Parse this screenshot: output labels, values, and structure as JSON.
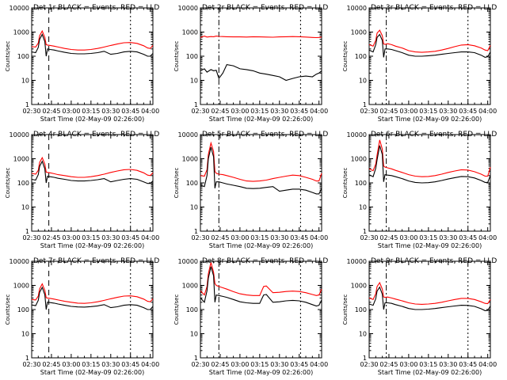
{
  "chart_data": [
    {
      "type": "line",
      "title": "Det 1r BLACK = Events, RED = LLD",
      "xlabel": "Start Time (02-May-09 02:26:00)",
      "ylabel": "Counts/sec",
      "yscale": "log",
      "ylim": [
        1,
        10000
      ],
      "x_ticks": [
        "02:30",
        "02:45",
        "03:00",
        "03:15",
        "03:30",
        "03:45",
        "04:00"
      ],
      "y_ticks": [
        "1",
        "10",
        "100",
        "1000",
        "10000"
      ],
      "x": [
        0,
        3,
        5,
        6,
        8,
        10,
        11,
        12,
        14,
        17,
        20,
        25,
        30,
        35,
        40,
        45,
        50,
        55,
        60,
        65,
        70,
        75,
        80,
        85,
        88,
        90,
        92
      ],
      "series": [
        {
          "color": "#ff0000",
          "values": [
            250,
            240,
            350,
            700,
            1100,
            600,
            300,
            290,
            280,
            260,
            240,
            210,
            190,
            180,
            180,
            190,
            210,
            240,
            280,
            320,
            360,
            370,
            340,
            270,
            220,
            210,
            280
          ]
        },
        {
          "color": "#000000",
          "values": [
            150,
            140,
            230,
            500,
            800,
            400,
            100,
            200,
            190,
            180,
            165,
            145,
            130,
            125,
            125,
            130,
            140,
            160,
            120,
            130,
            150,
            160,
            150,
            120,
            100,
            100,
            130
          ]
        }
      ],
      "vlines": [
        {
          "x": 13,
          "style": "dashed"
        },
        {
          "x": 75,
          "style": "dotted"
        }
      ]
    },
    {
      "type": "line",
      "title": "Det 2r BLACK = Events, RED = LLD",
      "xlabel": "Start Time (02-May-09 02:26:00)",
      "ylabel": "Counts/sec",
      "yscale": "log",
      "ylim": [
        1,
        10000
      ],
      "x_ticks": [
        "02:30",
        "02:45",
        "03:00",
        "03:15",
        "03:30",
        "03:45",
        "04:00"
      ],
      "y_ticks": [
        "1",
        "10",
        "100",
        "1000",
        "10000"
      ],
      "x": [
        0,
        3,
        5,
        8,
        10,
        12,
        14,
        17,
        20,
        25,
        30,
        35,
        40,
        45,
        50,
        55,
        60,
        65,
        70,
        75,
        80,
        85,
        88,
        90,
        92
      ],
      "series": [
        {
          "color": "#ff0000",
          "values": [
            600,
            680,
            620,
            650,
            640,
            680,
            660,
            650,
            640,
            630,
            630,
            620,
            640,
            630,
            620,
            610,
            630,
            640,
            650,
            640,
            620,
            600,
            590,
            600,
            620
          ]
        },
        {
          "color": "#000000",
          "values": [
            25,
            30,
            22,
            28,
            25,
            26,
            12,
            20,
            45,
            40,
            30,
            28,
            25,
            20,
            18,
            16,
            14,
            10,
            12,
            14,
            15,
            14,
            18,
            20,
            25
          ]
        }
      ],
      "vlines": [
        {
          "x": 14,
          "style": "dashdot"
        },
        {
          "x": 76,
          "style": "dotted"
        }
      ]
    },
    {
      "type": "line",
      "title": "Det 3r BLACK = Events, RED = LLD",
      "xlabel": "Start Time (02-May-09 02:26:00)",
      "ylabel": "Counts/sec",
      "yscale": "log",
      "ylim": [
        1,
        10000
      ],
      "x_ticks": [
        "02:30",
        "02:45",
        "03:00",
        "03:15",
        "03:30",
        "03:45",
        "04:00"
      ],
      "y_ticks": [
        "1",
        "10",
        "100",
        "1000",
        "10000"
      ],
      "x": [
        0,
        3,
        5,
        6,
        8,
        10,
        11,
        12,
        14,
        17,
        20,
        25,
        30,
        35,
        40,
        45,
        50,
        55,
        60,
        65,
        70,
        75,
        80,
        85,
        88,
        90,
        92
      ],
      "series": [
        {
          "color": "#ff0000",
          "values": [
            300,
            260,
            450,
            900,
            1200,
            700,
            320,
            310,
            330,
            300,
            260,
            220,
            170,
            150,
            145,
            150,
            160,
            180,
            210,
            250,
            290,
            300,
            270,
            220,
            180,
            170,
            280
          ]
        },
        {
          "color": "#000000",
          "values": [
            180,
            150,
            300,
            600,
            800,
            450,
            90,
            200,
            200,
            190,
            170,
            140,
            110,
            100,
            100,
            105,
            110,
            120,
            130,
            140,
            150,
            150,
            140,
            110,
            90,
            95,
            150
          ]
        }
      ],
      "vlines": [
        {
          "x": 13,
          "style": "dashdot"
        },
        {
          "x": 75,
          "style": "dotted"
        }
      ]
    },
    {
      "type": "line",
      "title": "Det 4r BLACK = Events, RED = LLD",
      "xlabel": "Start Time (02-May-09 02:26:00)",
      "ylabel": "Counts/sec",
      "yscale": "log",
      "ylim": [
        1,
        10000
      ],
      "x_ticks": [
        "02:30",
        "02:45",
        "03:00",
        "03:15",
        "03:30",
        "03:45",
        "04:00"
      ],
      "y_ticks": [
        "1",
        "10",
        "100",
        "1000",
        "10000"
      ],
      "x": [
        0,
        3,
        5,
        6,
        8,
        10,
        11,
        12,
        14,
        17,
        20,
        25,
        30,
        35,
        40,
        45,
        50,
        55,
        60,
        65,
        70,
        75,
        80,
        85,
        88,
        90,
        92
      ],
      "series": [
        {
          "color": "#ff0000",
          "values": [
            250,
            230,
            330,
            700,
            1100,
            600,
            280,
            270,
            260,
            240,
            220,
            200,
            180,
            170,
            170,
            180,
            200,
            230,
            270,
            310,
            350,
            360,
            330,
            260,
            210,
            200,
            260
          ]
        },
        {
          "color": "#000000",
          "values": [
            140,
            130,
            220,
            480,
            780,
            380,
            100,
            190,
            180,
            170,
            155,
            140,
            125,
            120,
            120,
            125,
            135,
            150,
            110,
            125,
            140,
            150,
            140,
            110,
            95,
            95,
            120
          ]
        }
      ],
      "vlines": [
        {
          "x": 13,
          "style": "dashed"
        },
        {
          "x": 75,
          "style": "dotted"
        }
      ]
    },
    {
      "type": "line",
      "title": "Det 5r BLACK = Events, RED = LLD",
      "xlabel": "Start Time (02-May-09 02:26:00)",
      "ylabel": "Counts/sec",
      "yscale": "log",
      "ylim": [
        1,
        10000
      ],
      "x_ticks": [
        "02:30",
        "02:45",
        "03:00",
        "03:15",
        "03:30",
        "03:45",
        "04:00"
      ],
      "y_ticks": [
        "1",
        "10",
        "100",
        "1000",
        "10000"
      ],
      "x": [
        0,
        3,
        5,
        6,
        8,
        10,
        11,
        12,
        14,
        17,
        20,
        25,
        30,
        35,
        40,
        45,
        50,
        55,
        60,
        65,
        70,
        75,
        80,
        85,
        88,
        90,
        92
      ],
      "series": [
        {
          "color": "#ff0000",
          "values": [
            200,
            190,
            350,
            1500,
            4500,
            2000,
            300,
            250,
            230,
            220,
            200,
            170,
            140,
            120,
            115,
            120,
            130,
            150,
            170,
            190,
            210,
            200,
            170,
            140,
            120,
            120,
            250
          ]
        },
        {
          "color": "#000000",
          "values": [
            80,
            70,
            200,
            1000,
            3000,
            1200,
            60,
            110,
            110,
            100,
            90,
            80,
            70,
            60,
            58,
            60,
            65,
            70,
            45,
            50,
            55,
            55,
            50,
            40,
            35,
            35,
            60
          ]
        }
      ],
      "vlines": [
        {
          "x": 14,
          "style": "dashdot"
        },
        {
          "x": 76,
          "style": "dotted"
        }
      ]
    },
    {
      "type": "line",
      "title": "Det 6r BLACK = Events, RED = LLD",
      "xlabel": "Start Time (02-May-09 02:26:00)",
      "ylabel": "Counts/sec",
      "yscale": "log",
      "ylim": [
        1,
        10000
      ],
      "x_ticks": [
        "02:30",
        "02:45",
        "03:00",
        "03:15",
        "03:30",
        "03:45",
        "04:00"
      ],
      "y_ticks": [
        "1",
        "10",
        "100",
        "1000",
        "10000"
      ],
      "x": [
        0,
        3,
        5,
        6,
        8,
        10,
        11,
        12,
        14,
        17,
        20,
        25,
        30,
        35,
        40,
        45,
        50,
        55,
        60,
        65,
        70,
        75,
        80,
        85,
        88,
        90,
        92
      ],
      "series": [
        {
          "color": "#ff0000",
          "values": [
            380,
            320,
            600,
            1400,
            6000,
            2500,
            500,
            450,
            420,
            380,
            330,
            270,
            220,
            190,
            180,
            185,
            200,
            230,
            270,
            310,
            350,
            340,
            290,
            230,
            190,
            190,
            450
          ]
        },
        {
          "color": "#000000",
          "values": [
            220,
            180,
            400,
            900,
            3500,
            1500,
            110,
            220,
            210,
            200,
            180,
            150,
            120,
            105,
            100,
            102,
            110,
            125,
            145,
            165,
            185,
            180,
            160,
            125,
            105,
            105,
            200
          ]
        }
      ],
      "vlines": [
        {
          "x": 13,
          "style": "dashdot"
        },
        {
          "x": 75,
          "style": "dotted"
        }
      ]
    },
    {
      "type": "line",
      "title": "Det 7r BLACK = Events, RED = LLD",
      "xlabel": "Start Time (02-May-09 02:26:00)",
      "ylabel": "Counts/sec",
      "yscale": "log",
      "ylim": [
        1,
        10000
      ],
      "x_ticks": [
        "02:30",
        "02:45",
        "03:00",
        "03:15",
        "03:30",
        "03:45",
        "04:00"
      ],
      "y_ticks": [
        "1",
        "10",
        "100",
        "1000",
        "10000"
      ],
      "x": [
        0,
        3,
        5,
        6,
        8,
        10,
        11,
        12,
        14,
        17,
        20,
        25,
        30,
        35,
        40,
        45,
        50,
        55,
        60,
        65,
        70,
        75,
        80,
        85,
        88,
        90,
        92
      ],
      "series": [
        {
          "color": "#ff0000",
          "values": [
            260,
            250,
            360,
            720,
            1150,
            620,
            310,
            300,
            290,
            270,
            250,
            220,
            200,
            185,
            180,
            190,
            210,
            240,
            280,
            320,
            360,
            370,
            340,
            270,
            220,
            210,
            280
          ]
        },
        {
          "color": "#000000",
          "values": [
            155,
            145,
            240,
            520,
            820,
            410,
            100,
            205,
            195,
            185,
            170,
            150,
            135,
            128,
            126,
            132,
            142,
            160,
            120,
            130,
            150,
            160,
            150,
            120,
            100,
            100,
            135
          ]
        }
      ],
      "vlines": [
        {
          "x": 13,
          "style": "dashed"
        },
        {
          "x": 75,
          "style": "dotted"
        }
      ]
    },
    {
      "type": "line",
      "title": "Det 8r BLACK = Events, RED = LLD",
      "xlabel": "Start Time (02-May-09 02:26:00)",
      "ylabel": "Counts/sec",
      "yscale": "log",
      "ylim": [
        1,
        10000
      ],
      "x_ticks": [
        "02:30",
        "02:45",
        "03:00",
        "03:15",
        "03:30",
        "03:45",
        "04:00"
      ],
      "y_ticks": [
        "1",
        "10",
        "100",
        "1000",
        "10000"
      ],
      "x": [
        0,
        3,
        5,
        6,
        8,
        10,
        11,
        12,
        14,
        17,
        20,
        25,
        30,
        35,
        40,
        45,
        48,
        50,
        55,
        60,
        65,
        70,
        75,
        80,
        85,
        88,
        90,
        92
      ],
      "series": [
        {
          "color": "#ff0000",
          "values": [
            600,
            400,
            900,
            3000,
            9000,
            3500,
            1200,
            1000,
            900,
            800,
            700,
            550,
            450,
            400,
            380,
            380,
            900,
            950,
            500,
            520,
            560,
            580,
            560,
            500,
            420,
            380,
            400,
            700
          ]
        },
        {
          "color": "#000000",
          "values": [
            300,
            200,
            600,
            2000,
            6000,
            2500,
            200,
            400,
            380,
            350,
            320,
            260,
            210,
            190,
            180,
            180,
            400,
            420,
            200,
            210,
            230,
            240,
            230,
            200,
            160,
            140,
            150,
            250
          ]
        }
      ],
      "vlines": [
        {
          "x": 14,
          "style": "dashdot"
        },
        {
          "x": 76,
          "style": "dotted"
        }
      ]
    },
    {
      "type": "line",
      "title": "Det 9r BLACK = Events, RED = LLD",
      "xlabel": "Start Time (02-May-09 02:26:00)",
      "ylabel": "Counts/sec",
      "yscale": "log",
      "ylim": [
        1,
        10000
      ],
      "x_ticks": [
        "02:30",
        "02:45",
        "03:00",
        "03:15",
        "03:30",
        "03:45",
        "04:00"
      ],
      "y_ticks": [
        "1",
        "10",
        "100",
        "1000",
        "10000"
      ],
      "x": [
        0,
        3,
        5,
        6,
        8,
        10,
        11,
        12,
        14,
        17,
        20,
        25,
        30,
        35,
        40,
        45,
        50,
        55,
        60,
        65,
        70,
        75,
        80,
        85,
        88,
        90,
        92
      ],
      "series": [
        {
          "color": "#ff0000",
          "values": [
            300,
            260,
            450,
            900,
            1300,
            700,
            330,
            320,
            330,
            300,
            270,
            230,
            190,
            170,
            165,
            170,
            180,
            200,
            230,
            260,
            290,
            290,
            260,
            210,
            180,
            175,
            260
          ]
        },
        {
          "color": "#000000",
          "values": [
            170,
            150,
            280,
            580,
            850,
            430,
            100,
            190,
            190,
            180,
            160,
            135,
            110,
            100,
            100,
            104,
            110,
            120,
            130,
            140,
            150,
            148,
            135,
            108,
            90,
            92,
            140
          ]
        }
      ],
      "vlines": [
        {
          "x": 13,
          "style": "dashdot"
        },
        {
          "x": 75,
          "style": "dotted"
        }
      ]
    }
  ]
}
